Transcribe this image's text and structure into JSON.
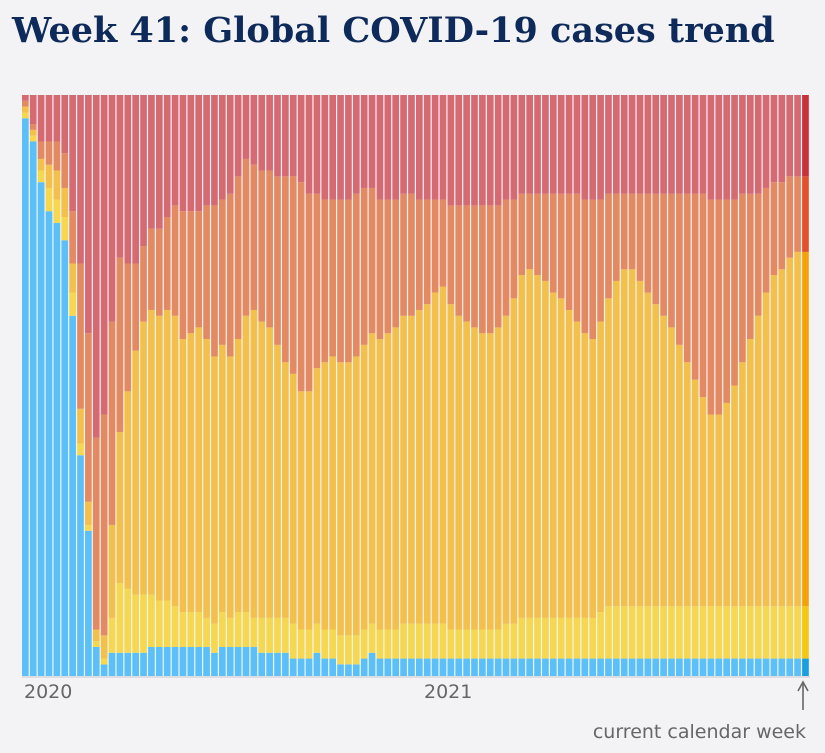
{
  "chart_data": {
    "type": "bar",
    "stacked": "100%",
    "title": "Week 41: Global COVID-19 cases trend",
    "x_tick_labels": [
      "2020",
      "2021"
    ],
    "annotation": "current calendar week",
    "grid": false,
    "legend": "none",
    "colors": [
      "#5bc0f8",
      "#f5d84f",
      "#f3c04b",
      "#e48a63",
      "#d66a73"
    ],
    "current_week_colors": [
      "#1a9ee0",
      "#f5c715",
      "#f3a20a",
      "#e2502c",
      "#c6313a"
    ],
    "series_shares_percent": {
      "bottom_to_top": [
        [
          96,
          1,
          1,
          1,
          1
        ],
        [
          92,
          1,
          1,
          1,
          5
        ],
        [
          85,
          2,
          2,
          3,
          8
        ],
        [
          80,
          4,
          4,
          4,
          8
        ],
        [
          78,
          4,
          5,
          5,
          8
        ],
        [
          75,
          4,
          5,
          6,
          10
        ],
        [
          62,
          4,
          5,
          9,
          20
        ],
        [
          38,
          2,
          6,
          25,
          29
        ],
        [
          25,
          1,
          4,
          29,
          41
        ],
        [
          5,
          1,
          2,
          33,
          59
        ],
        [
          2,
          1,
          4,
          38,
          55
        ],
        [
          4,
          6,
          16,
          35,
          39
        ],
        [
          4,
          12,
          26,
          30,
          28
        ],
        [
          4,
          11,
          34,
          22,
          29
        ],
        [
          4,
          10,
          42,
          15,
          29
        ],
        [
          4,
          10,
          47,
          13,
          26
        ],
        [
          5,
          9,
          49,
          14,
          23
        ],
        [
          5,
          8,
          49,
          15,
          23
        ],
        [
          5,
          8,
          50,
          16,
          21
        ],
        [
          5,
          7,
          50,
          19,
          19
        ],
        [
          5,
          6,
          47,
          22,
          20
        ],
        [
          5,
          6,
          48,
          21,
          20
        ],
        [
          5,
          6,
          49,
          20,
          20
        ],
        [
          5,
          5,
          48,
          23,
          19
        ],
        [
          4,
          5,
          46,
          26,
          19
        ],
        [
          5,
          6,
          46,
          25,
          18
        ],
        [
          5,
          5,
          45,
          28,
          17
        ],
        [
          5,
          6,
          47,
          28,
          14
        ],
        [
          5,
          6,
          51,
          27,
          11
        ],
        [
          5,
          5,
          53,
          25,
          12
        ],
        [
          4,
          6,
          51,
          26,
          13
        ],
        [
          4,
          6,
          50,
          27,
          13
        ],
        [
          4,
          6,
          47,
          29,
          14
        ],
        [
          4,
          6,
          44,
          32,
          14
        ],
        [
          3,
          6,
          43,
          34,
          14
        ],
        [
          3,
          5,
          41,
          36,
          15
        ],
        [
          3,
          5,
          41,
          34,
          17
        ],
        [
          4,
          5,
          44,
          30,
          17
        ],
        [
          3,
          5,
          46,
          28,
          18
        ],
        [
          3,
          5,
          47,
          27,
          18
        ],
        [
          2,
          5,
          47,
          28,
          18
        ],
        [
          2,
          5,
          47,
          28,
          18
        ],
        [
          2,
          5,
          48,
          28,
          17
        ],
        [
          3,
          5,
          49,
          27,
          16
        ],
        [
          4,
          5,
          50,
          25,
          16
        ],
        [
          3,
          5,
          50,
          24,
          18
        ],
        [
          3,
          5,
          51,
          23,
          18
        ],
        [
          3,
          5,
          52,
          22,
          18
        ],
        [
          3,
          6,
          53,
          21,
          17
        ],
        [
          3,
          6,
          53,
          21,
          17
        ],
        [
          3,
          6,
          54,
          19,
          18
        ],
        [
          3,
          6,
          55,
          18,
          18
        ],
        [
          3,
          6,
          57,
          16,
          18
        ],
        [
          3,
          6,
          58,
          15,
          18
        ],
        [
          3,
          5,
          56,
          17,
          19
        ],
        [
          3,
          5,
          54,
          19,
          19
        ],
        [
          3,
          5,
          53,
          20,
          19
        ],
        [
          3,
          5,
          52,
          21,
          19
        ],
        [
          3,
          5,
          51,
          22,
          19
        ],
        [
          3,
          5,
          51,
          22,
          19
        ],
        [
          3,
          5,
          52,
          21,
          19
        ],
        [
          3,
          6,
          53,
          20,
          18
        ],
        [
          3,
          6,
          56,
          17,
          18
        ],
        [
          3,
          7,
          59,
          14,
          17
        ],
        [
          3,
          7,
          60,
          13,
          17
        ],
        [
          3,
          7,
          59,
          14,
          17
        ],
        [
          3,
          7,
          58,
          15,
          17
        ],
        [
          3,
          7,
          56,
          17,
          17
        ],
        [
          3,
          7,
          55,
          18,
          17
        ],
        [
          3,
          7,
          53,
          20,
          17
        ],
        [
          3,
          7,
          51,
          22,
          17
        ],
        [
          3,
          7,
          49,
          23,
          18
        ],
        [
          3,
          7,
          48,
          24,
          18
        ],
        [
          3,
          8,
          50,
          21,
          18
        ],
        [
          3,
          9,
          53,
          18,
          17
        ],
        [
          3,
          9,
          56,
          15,
          17
        ],
        [
          3,
          9,
          58,
          13,
          17
        ],
        [
          3,
          9,
          58,
          13,
          17
        ],
        [
          3,
          9,
          56,
          15,
          17
        ],
        [
          3,
          9,
          54,
          17,
          17
        ],
        [
          3,
          9,
          52,
          19,
          17
        ],
        [
          3,
          9,
          50,
          21,
          17
        ],
        [
          3,
          9,
          48,
          23,
          17
        ],
        [
          3,
          9,
          45,
          26,
          17
        ],
        [
          3,
          9,
          42,
          29,
          17
        ],
        [
          3,
          9,
          39,
          32,
          17
        ],
        [
          3,
          9,
          36,
          35,
          17
        ],
        [
          3,
          9,
          33,
          37,
          18
        ],
        [
          3,
          9,
          33,
          37,
          18
        ],
        [
          3,
          9,
          35,
          35,
          18
        ],
        [
          3,
          9,
          38,
          32,
          18
        ],
        [
          3,
          9,
          42,
          29,
          17
        ],
        [
          3,
          9,
          46,
          25,
          17
        ],
        [
          3,
          9,
          50,
          21,
          17
        ],
        [
          3,
          9,
          54,
          18,
          16
        ],
        [
          3,
          9,
          57,
          16,
          15
        ],
        [
          3,
          9,
          58,
          15,
          15
        ],
        [
          3,
          9,
          60,
          14,
          14
        ],
        [
          3,
          9,
          61,
          13,
          14
        ],
        [
          3,
          9,
          61,
          13,
          14
        ]
      ]
    }
  }
}
